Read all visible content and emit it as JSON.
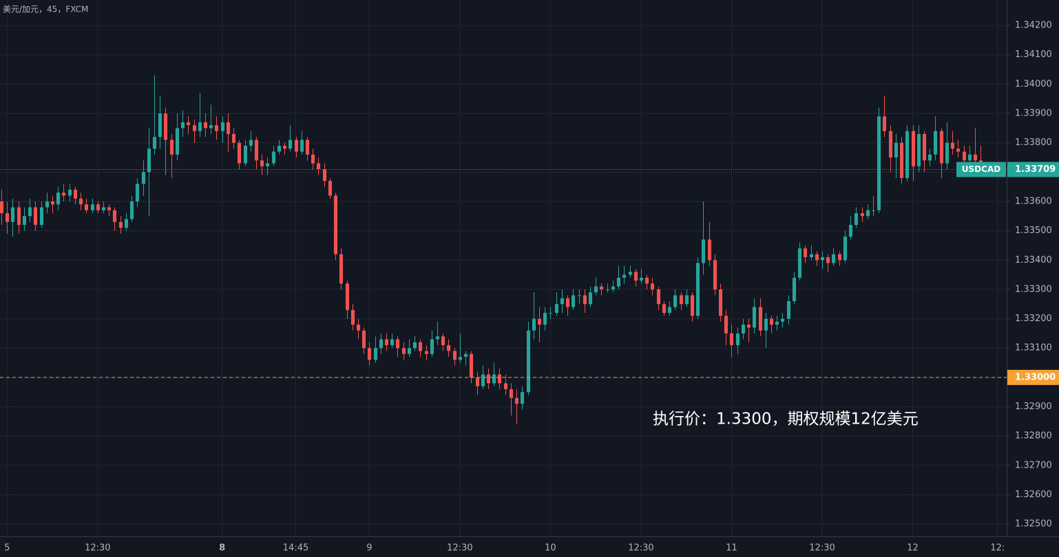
{
  "chart_data": {
    "type": "candlestick",
    "title": "美元/加元，45，FXCM",
    "annotation": "执行价：1.3300，期权规模12亿美元",
    "up_color": "#26a69a",
    "down_color": "#ef5350",
    "grid": true,
    "ylim": [
      1.32458,
      1.34287
    ],
    "yticks": [
      {
        "value": 1.325,
        "label": "1.32500"
      },
      {
        "value": 1.326,
        "label": "1.32600"
      },
      {
        "value": 1.327,
        "label": "1.32700"
      },
      {
        "value": 1.328,
        "label": "1.32800"
      },
      {
        "value": 1.329,
        "label": "1.32900"
      },
      {
        "value": 1.33,
        "label": "1.33000"
      },
      {
        "value": 1.331,
        "label": "1.33100"
      },
      {
        "value": 1.332,
        "label": "1.33200"
      },
      {
        "value": 1.333,
        "label": "1.33300"
      },
      {
        "value": 1.334,
        "label": "1.33400"
      },
      {
        "value": 1.335,
        "label": "1.33500"
      },
      {
        "value": 1.336,
        "label": "1.33600"
      },
      {
        "value": 1.337,
        "label": "1.33700"
      },
      {
        "value": 1.338,
        "label": "1.33800"
      },
      {
        "value": 1.339,
        "label": "1.33900"
      },
      {
        "value": 1.34,
        "label": "1.34000"
      },
      {
        "value": 1.341,
        "label": "1.34100"
      },
      {
        "value": 1.342,
        "label": "1.34200"
      }
    ],
    "xlim": [
      -0.25,
      177.6
    ],
    "xticks": [
      {
        "value": 1,
        "label": "5"
      },
      {
        "value": 17,
        "label": "12:30"
      },
      {
        "value": 39,
        "label": "8"
      },
      {
        "value": 52,
        "label": "14:45"
      },
      {
        "value": 65,
        "label": "9"
      },
      {
        "value": 81,
        "label": "12:30"
      },
      {
        "value": 97,
        "label": "10"
      },
      {
        "value": 113,
        "label": "12:30"
      },
      {
        "value": 129,
        "label": "11"
      },
      {
        "value": 145,
        "label": "12:30"
      },
      {
        "value": 161,
        "label": "12"
      },
      {
        "value": 176,
        "label": "12:"
      }
    ],
    "price_line": {
      "name": "USDCAD",
      "value": 1.33709,
      "color": "#26a69a"
    },
    "strike_line": {
      "value": 1.33,
      "label": "1.33000",
      "color": "#f7a234"
    },
    "candles": [
      [
        1.336,
        1.3364,
        1.3352,
        1.3356
      ],
      [
        1.3356,
        1.336,
        1.3349,
        1.3353
      ],
      [
        1.3353,
        1.3361,
        1.3348,
        1.3358
      ],
      [
        1.3358,
        1.336,
        1.3349,
        1.3352
      ],
      [
        1.3352,
        1.3358,
        1.335,
        1.3355
      ],
      [
        1.3355,
        1.3361,
        1.3353,
        1.3358
      ],
      [
        1.3358,
        1.336,
        1.335,
        1.3352
      ],
      [
        1.3352,
        1.336,
        1.3351,
        1.3358
      ],
      [
        1.3358,
        1.3363,
        1.3356,
        1.336
      ],
      [
        1.336,
        1.3362,
        1.3356,
        1.3359
      ],
      [
        1.3359,
        1.3365,
        1.3357,
        1.3363
      ],
      [
        1.3363,
        1.3366,
        1.336,
        1.3362
      ],
      [
        1.3362,
        1.3366,
        1.336,
        1.3364
      ],
      [
        1.3364,
        1.3365,
        1.3359,
        1.3361
      ],
      [
        1.3361,
        1.3363,
        1.3357,
        1.3359
      ],
      [
        1.3359,
        1.3361,
        1.3356,
        1.3357
      ],
      [
        1.3357,
        1.3361,
        1.3356,
        1.3359
      ],
      [
        1.3359,
        1.336,
        1.3356,
        1.3357
      ],
      [
        1.3357,
        1.336,
        1.3356,
        1.3358
      ],
      [
        1.3358,
        1.3359,
        1.3355,
        1.3357
      ],
      [
        1.3357,
        1.3358,
        1.335,
        1.3353
      ],
      [
        1.3353,
        1.3355,
        1.3349,
        1.3351
      ],
      [
        1.3351,
        1.3356,
        1.335,
        1.3354
      ],
      [
        1.3354,
        1.3362,
        1.3353,
        1.336
      ],
      [
        1.336,
        1.3368,
        1.3358,
        1.3366
      ],
      [
        1.3366,
        1.3374,
        1.3362,
        1.337
      ],
      [
        1.337,
        1.3385,
        1.3355,
        1.3378
      ],
      [
        1.3378,
        1.3403,
        1.3376,
        1.3382
      ],
      [
        1.3382,
        1.3396,
        1.3378,
        1.339
      ],
      [
        1.339,
        1.3392,
        1.3369,
        1.3381
      ],
      [
        1.3381,
        1.3383,
        1.3368,
        1.3376
      ],
      [
        1.3376,
        1.339,
        1.3374,
        1.3385
      ],
      [
        1.3385,
        1.3391,
        1.3382,
        1.3387
      ],
      [
        1.3387,
        1.3389,
        1.3383,
        1.3386
      ],
      [
        1.3386,
        1.3388,
        1.338,
        1.3384
      ],
      [
        1.3384,
        1.3397,
        1.3382,
        1.3387
      ],
      [
        1.3387,
        1.339,
        1.3382,
        1.3385
      ],
      [
        1.3385,
        1.3393,
        1.3383,
        1.3386
      ],
      [
        1.3386,
        1.3389,
        1.3381,
        1.3384
      ],
      [
        1.3384,
        1.3389,
        1.338,
        1.3387
      ],
      [
        1.3387,
        1.339,
        1.3377,
        1.3383
      ],
      [
        1.3383,
        1.3385,
        1.3378,
        1.338
      ],
      [
        1.338,
        1.3381,
        1.3371,
        1.3373
      ],
      [
        1.3373,
        1.3381,
        1.3372,
        1.3379
      ],
      [
        1.3379,
        1.3384,
        1.3377,
        1.3381
      ],
      [
        1.3381,
        1.3382,
        1.3371,
        1.3374
      ],
      [
        1.3374,
        1.3376,
        1.3369,
        1.3372
      ],
      [
        1.3372,
        1.3375,
        1.3369,
        1.3373
      ],
      [
        1.3373,
        1.3379,
        1.3372,
        1.3377
      ],
      [
        1.3377,
        1.3381,
        1.3376,
        1.3379
      ],
      [
        1.3379,
        1.338,
        1.3376,
        1.3378
      ],
      [
        1.3378,
        1.3386,
        1.3377,
        1.3381
      ],
      [
        1.3381,
        1.3382,
        1.3375,
        1.3377
      ],
      [
        1.3377,
        1.3384,
        1.3376,
        1.3381
      ],
      [
        1.3381,
        1.3382,
        1.3374,
        1.3376
      ],
      [
        1.3376,
        1.3378,
        1.3371,
        1.3373
      ],
      [
        1.3373,
        1.3375,
        1.3369,
        1.3371
      ],
      [
        1.3371,
        1.3373,
        1.3365,
        1.3367
      ],
      [
        1.3367,
        1.3368,
        1.3361,
        1.3362
      ],
      [
        1.3362,
        1.3363,
        1.334,
        1.3342
      ],
      [
        1.3342,
        1.3344,
        1.333,
        1.3332
      ],
      [
        1.3332,
        1.3333,
        1.332,
        1.3323
      ],
      [
        1.3323,
        1.3325,
        1.3316,
        1.3318
      ],
      [
        1.3318,
        1.332,
        1.3313,
        1.3316
      ],
      [
        1.3316,
        1.3317,
        1.3308,
        1.331
      ],
      [
        1.331,
        1.3312,
        1.3304,
        1.3306
      ],
      [
        1.3306,
        1.3314,
        1.3305,
        1.331
      ],
      [
        1.331,
        1.3315,
        1.3308,
        1.3313
      ],
      [
        1.3313,
        1.3315,
        1.3309,
        1.3311
      ],
      [
        1.3311,
        1.3315,
        1.331,
        1.3313
      ],
      [
        1.3313,
        1.3314,
        1.3307,
        1.331
      ],
      [
        1.331,
        1.3312,
        1.3306,
        1.3308
      ],
      [
        1.3308,
        1.3313,
        1.3307,
        1.331
      ],
      [
        1.331,
        1.3314,
        1.3309,
        1.3312
      ],
      [
        1.3312,
        1.3313,
        1.3307,
        1.3309
      ],
      [
        1.3309,
        1.3311,
        1.3306,
        1.3308
      ],
      [
        1.3308,
        1.3316,
        1.3307,
        1.3313
      ],
      [
        1.3313,
        1.3319,
        1.3311,
        1.3314
      ],
      [
        1.3314,
        1.3315,
        1.3309,
        1.3311
      ],
      [
        1.3311,
        1.3313,
        1.3307,
        1.3309
      ],
      [
        1.3309,
        1.331,
        1.3304,
        1.3306
      ],
      [
        1.3306,
        1.3315,
        1.3305,
        1.3307
      ],
      [
        1.3307,
        1.3309,
        1.3304,
        1.3308
      ],
      [
        1.3308,
        1.3309,
        1.3298,
        1.33
      ],
      [
        1.33,
        1.3302,
        1.3294,
        1.3297
      ],
      [
        1.3297,
        1.3304,
        1.3296,
        1.3301
      ],
      [
        1.3301,
        1.3303,
        1.3296,
        1.3298
      ],
      [
        1.3298,
        1.3305,
        1.3297,
        1.3301
      ],
      [
        1.3301,
        1.3303,
        1.3296,
        1.3298
      ],
      [
        1.3298,
        1.3301,
        1.3294,
        1.3296
      ],
      [
        1.3296,
        1.3298,
        1.3287,
        1.3293
      ],
      [
        1.3293,
        1.3296,
        1.3284,
        1.3291
      ],
      [
        1.3291,
        1.3297,
        1.3289,
        1.3295
      ],
      [
        1.3295,
        1.3319,
        1.3294,
        1.3316
      ],
      [
        1.3316,
        1.3329,
        1.3313,
        1.332
      ],
      [
        1.332,
        1.3324,
        1.3312,
        1.3318
      ],
      [
        1.3318,
        1.3324,
        1.3316,
        1.3322
      ],
      [
        1.3322,
        1.3324,
        1.332,
        1.3322
      ],
      [
        1.3322,
        1.3329,
        1.3321,
        1.3325
      ],
      [
        1.3325,
        1.333,
        1.3322,
        1.3327
      ],
      [
        1.3327,
        1.3328,
        1.3321,
        1.3324
      ],
      [
        1.3324,
        1.333,
        1.3323,
        1.3328
      ],
      [
        1.3328,
        1.333,
        1.3325,
        1.3328
      ],
      [
        1.3328,
        1.333,
        1.3322,
        1.3325
      ],
      [
        1.3325,
        1.3331,
        1.3324,
        1.3329
      ],
      [
        1.3329,
        1.3334,
        1.3328,
        1.3331
      ],
      [
        1.3331,
        1.3332,
        1.3328,
        1.333
      ],
      [
        1.333,
        1.3332,
        1.3329,
        1.333
      ],
      [
        1.333,
        1.3333,
        1.3329,
        1.3331
      ],
      [
        1.3331,
        1.3338,
        1.333,
        1.3334
      ],
      [
        1.3334,
        1.3338,
        1.3332,
        1.3335
      ],
      [
        1.3335,
        1.3338,
        1.3334,
        1.3336
      ],
      [
        1.3336,
        1.3337,
        1.3331,
        1.3333
      ],
      [
        1.3333,
        1.3337,
        1.3332,
        1.3334
      ],
      [
        1.3334,
        1.3335,
        1.333,
        1.3332
      ],
      [
        1.3332,
        1.3334,
        1.3328,
        1.333
      ],
      [
        1.333,
        1.3331,
        1.3323,
        1.3325
      ],
      [
        1.3325,
        1.3326,
        1.3321,
        1.3322
      ],
      [
        1.3322,
        1.3326,
        1.3321,
        1.3324
      ],
      [
        1.3324,
        1.333,
        1.3323,
        1.3328
      ],
      [
        1.3328,
        1.3329,
        1.3323,
        1.3325
      ],
      [
        1.3325,
        1.333,
        1.3324,
        1.3328
      ],
      [
        1.3328,
        1.3329,
        1.3319,
        1.3321
      ],
      [
        1.3321,
        1.3341,
        1.332,
        1.3339
      ],
      [
        1.3339,
        1.336,
        1.3335,
        1.3347
      ],
      [
        1.3347,
        1.3353,
        1.3338,
        1.334
      ],
      [
        1.334,
        1.3342,
        1.3328,
        1.333
      ],
      [
        1.333,
        1.3332,
        1.3319,
        1.3321
      ],
      [
        1.3321,
        1.3323,
        1.3311,
        1.3315
      ],
      [
        1.3315,
        1.3318,
        1.3307,
        1.3311
      ],
      [
        1.3311,
        1.3317,
        1.3308,
        1.3315
      ],
      [
        1.3315,
        1.332,
        1.3313,
        1.3318
      ],
      [
        1.3318,
        1.332,
        1.3312,
        1.3317
      ],
      [
        1.3317,
        1.3327,
        1.3315,
        1.3324
      ],
      [
        1.3324,
        1.3327,
        1.3314,
        1.3316
      ],
      [
        1.3316,
        1.3322,
        1.331,
        1.332
      ],
      [
        1.332,
        1.3321,
        1.3315,
        1.3318
      ],
      [
        1.3318,
        1.3321,
        1.3316,
        1.3319
      ],
      [
        1.3319,
        1.3322,
        1.3317,
        1.332
      ],
      [
        1.332,
        1.3328,
        1.3318,
        1.3326
      ],
      [
        1.3326,
        1.3336,
        1.3325,
        1.3334
      ],
      [
        1.3334,
        1.3346,
        1.3333,
        1.3344
      ],
      [
        1.3344,
        1.3345,
        1.3339,
        1.3341
      ],
      [
        1.3341,
        1.3345,
        1.334,
        1.3342
      ],
      [
        1.3342,
        1.3343,
        1.3338,
        1.334
      ],
      [
        1.334,
        1.3343,
        1.3337,
        1.3341
      ],
      [
        1.3341,
        1.3342,
        1.3336,
        1.3339
      ],
      [
        1.3339,
        1.3344,
        1.3338,
        1.3342
      ],
      [
        1.3342,
        1.3343,
        1.3338,
        1.334
      ],
      [
        1.334,
        1.335,
        1.3339,
        1.3348
      ],
      [
        1.3348,
        1.3355,
        1.3347,
        1.3352
      ],
      [
        1.3352,
        1.3358,
        1.3351,
        1.3356
      ],
      [
        1.3356,
        1.3358,
        1.3353,
        1.3355
      ],
      [
        1.3355,
        1.3359,
        1.3354,
        1.3357
      ],
      [
        1.3357,
        1.3362,
        1.3355,
        1.3357
      ],
      [
        1.3357,
        1.3392,
        1.3356,
        1.3389
      ],
      [
        1.3389,
        1.3396,
        1.3382,
        1.3384
      ],
      [
        1.3384,
        1.3386,
        1.337,
        1.3375
      ],
      [
        1.3375,
        1.3383,
        1.3368,
        1.338
      ],
      [
        1.338,
        1.3382,
        1.3366,
        1.3368
      ],
      [
        1.3368,
        1.3386,
        1.3367,
        1.3384
      ],
      [
        1.3384,
        1.3386,
        1.3367,
        1.3372
      ],
      [
        1.3372,
        1.3386,
        1.337,
        1.3383
      ],
      [
        1.3383,
        1.3384,
        1.337,
        1.3374
      ],
      [
        1.3374,
        1.3378,
        1.3372,
        1.3376
      ],
      [
        1.3376,
        1.3389,
        1.3374,
        1.3384
      ],
      [
        1.3384,
        1.3385,
        1.3368,
        1.3373
      ],
      [
        1.3373,
        1.3387,
        1.3371,
        1.338
      ],
      [
        1.338,
        1.3384,
        1.3376,
        1.3378
      ],
      [
        1.3378,
        1.3381,
        1.3375,
        1.3377
      ],
      [
        1.3377,
        1.3379,
        1.3371,
        1.3374
      ],
      [
        1.3374,
        1.3379,
        1.3372,
        1.3376
      ],
      [
        1.3376,
        1.3385,
        1.3372,
        1.3374
      ],
      [
        1.3374,
        1.3379,
        1.3369,
        1.33709
      ]
    ]
  }
}
